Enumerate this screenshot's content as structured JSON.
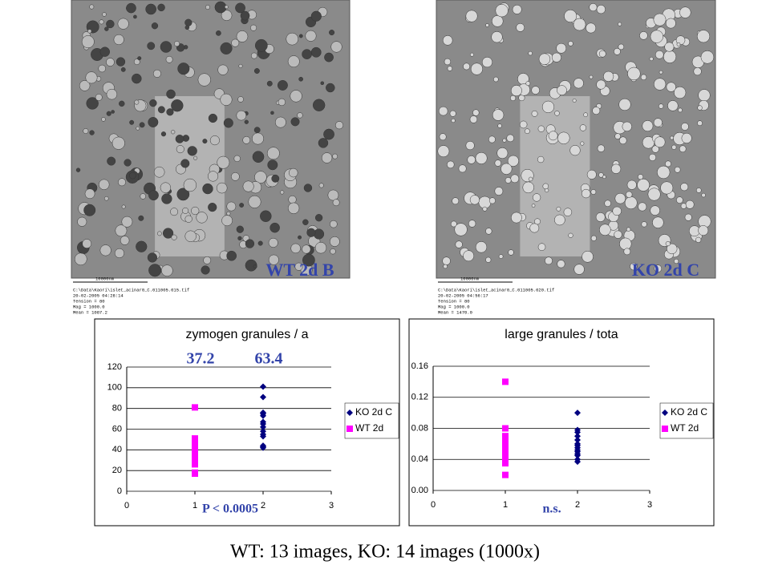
{
  "images": [
    {
      "label": "WT 2d B",
      "meta": [
        "10000nm",
        "C:\\Data\\Kaori\\islet_acinar0_C.011005.015.tif",
        "20-02-2005 04:28:14",
        "Tension = 80",
        "Mag = 1000.0",
        "Mean = 1087.2"
      ]
    },
    {
      "label": "KO 2d C",
      "meta": [
        "10000nm",
        "C:\\Data\\Kaori\\islet_acinar0_C.011005.020.tif",
        "20-02-2005 04:56:17",
        "Tension = 80",
        "Mag = 1000.0",
        "Mean = 1470.0"
      ]
    }
  ],
  "caption": "WT: 13 images, KO: 14 images (1000x)",
  "chart_data": [
    {
      "type": "scatter",
      "title": "zymogen granules / a",
      "annotations": [
        "37.2",
        "63.4",
        "P < 0.0005"
      ],
      "xlim": [
        0,
        3
      ],
      "xticks": [
        0,
        1,
        2,
        3
      ],
      "ylim": [
        0,
        120
      ],
      "yticks": [
        0,
        20,
        40,
        60,
        80,
        100,
        120
      ],
      "grid": true,
      "series": [
        {
          "name": "KO 2d C",
          "color": "#000080",
          "marker": "diamond",
          "x": [
            2,
            2,
            2,
            2,
            2,
            2,
            2,
            2,
            2,
            2,
            2,
            2,
            2,
            2
          ],
          "values": [
            101,
            91,
            76,
            75,
            73,
            67,
            65,
            62,
            58,
            55,
            53,
            44,
            43,
            42
          ]
        },
        {
          "name": "WT 2d",
          "color": "#ff00ff",
          "marker": "square",
          "x": [
            1,
            1,
            1,
            1,
            1,
            1,
            1,
            1,
            1,
            1,
            1,
            1,
            1
          ],
          "values": [
            81,
            51,
            48,
            45,
            42,
            38,
            35,
            33,
            30,
            28,
            26,
            18,
            17
          ]
        }
      ]
    },
    {
      "type": "scatter",
      "title": "large granules / tota",
      "annotations": [
        "n.s."
      ],
      "xlim": [
        0,
        3
      ],
      "xticks": [
        0,
        1,
        2,
        3
      ],
      "ylim": [
        0,
        0.16
      ],
      "yticks": [
        {
          "value": 0,
          "label": "0.00"
        },
        0.04,
        0.08,
        0.12,
        0.16
      ],
      "grid": true,
      "series": [
        {
          "name": "KO 2d C",
          "color": "#000080",
          "marker": "diamond",
          "x": [
            2,
            2,
            2,
            2,
            2,
            2,
            2,
            2,
            2,
            2,
            2,
            2,
            2,
            2
          ],
          "values": [
            0.1,
            0.078,
            0.075,
            0.07,
            0.065,
            0.06,
            0.058,
            0.055,
            0.052,
            0.05,
            0.047,
            0.045,
            0.04,
            0.037
          ]
        },
        {
          "name": "WT 2d",
          "color": "#ff00ff",
          "marker": "square",
          "x": [
            1,
            1,
            1,
            1,
            1,
            1,
            1,
            1,
            1,
            1,
            1,
            1,
            1
          ],
          "values": [
            0.14,
            0.08,
            0.07,
            0.068,
            0.065,
            0.062,
            0.06,
            0.055,
            0.05,
            0.045,
            0.04,
            0.035,
            0.02
          ]
        }
      ]
    }
  ]
}
